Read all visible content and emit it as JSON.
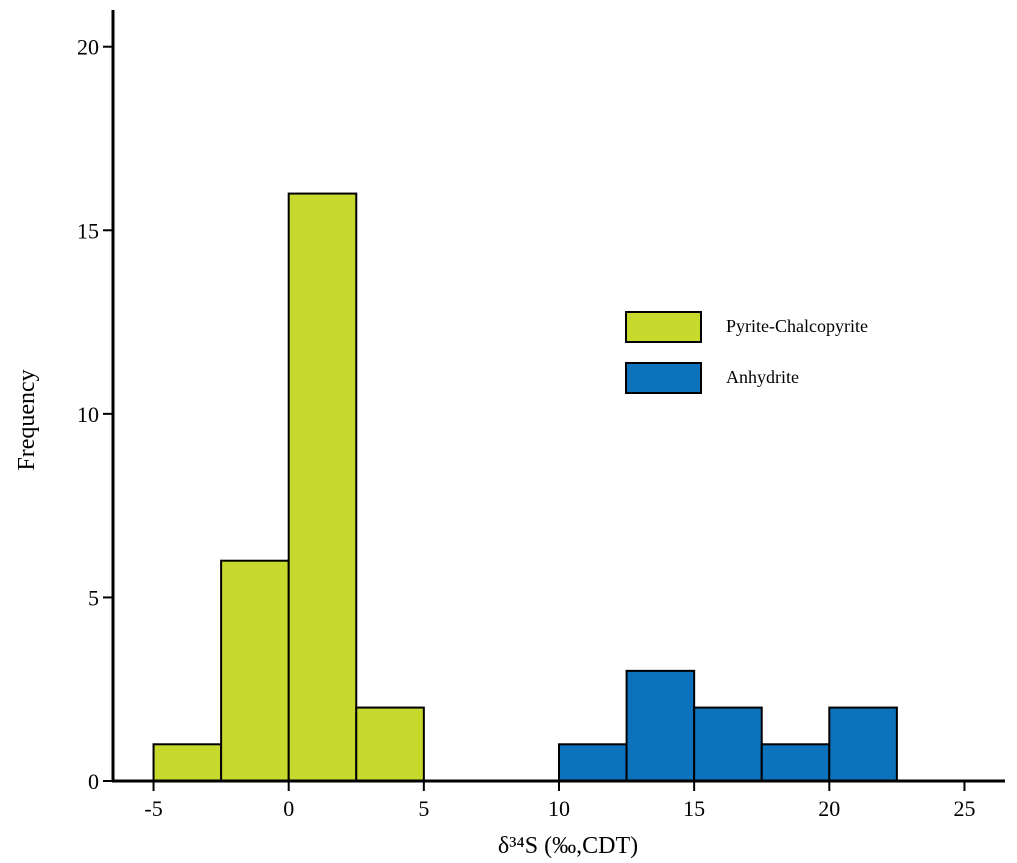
{
  "chart_data": {
    "type": "bar",
    "xlabel": "δ³⁴S (‰,CDT)",
    "ylabel": "Frequency",
    "xlim": [
      -6.5,
      26.5
    ],
    "ylim": [
      0,
      21
    ],
    "xticks": [
      -5,
      0,
      5,
      10,
      15,
      20,
      25
    ],
    "yticks": [
      0,
      5,
      10,
      15,
      20
    ],
    "grid": false,
    "legend_position": "right",
    "series": [
      {
        "name": "Pyrite-Chalcopyrite",
        "color": "#c8d92e",
        "bins": [
          {
            "start": -5,
            "end": -2.5,
            "count": 1
          },
          {
            "start": -2.5,
            "end": 0,
            "count": 6
          },
          {
            "start": 0,
            "end": 2.5,
            "count": 16
          },
          {
            "start": 2.5,
            "end": 5,
            "count": 2
          }
        ]
      },
      {
        "name": "Anhydrite",
        "color": "#0b72bb",
        "bins": [
          {
            "start": 10,
            "end": 12.5,
            "count": 1
          },
          {
            "start": 12.5,
            "end": 15,
            "count": 3
          },
          {
            "start": 15,
            "end": 17.5,
            "count": 2
          },
          {
            "start": 17.5,
            "end": 20,
            "count": 1
          },
          {
            "start": 20,
            "end": 22.5,
            "count": 2
          }
        ]
      }
    ]
  }
}
